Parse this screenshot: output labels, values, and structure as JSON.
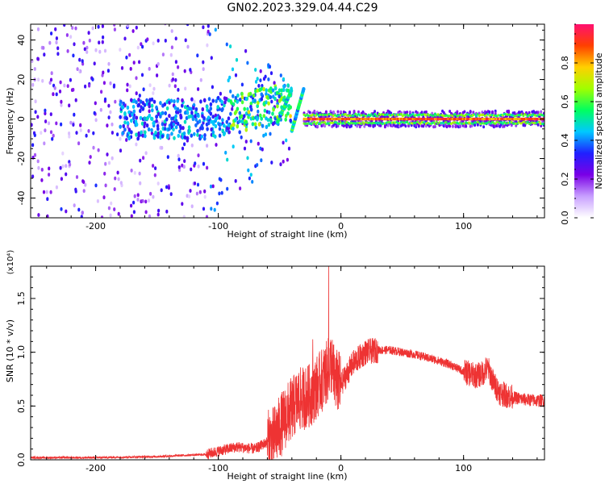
{
  "title": "GN02.2023.329.04.44.C29",
  "chart_data": [
    {
      "type": "heatmap",
      "xlabel": "Height of straight line (km)",
      "ylabel": "Frequency (Hz)",
      "xlim": [
        -253,
        166
      ],
      "ylim": [
        -50,
        48
      ],
      "x_ticks": [
        -200,
        -100,
        0,
        100
      ],
      "y_ticks": [
        -40,
        -20,
        0,
        20,
        40
      ],
      "colorbar": {
        "label": "Normalized spectral amplitude",
        "range": [
          0.0,
          1.0
        ],
        "ticks": [
          0.0,
          0.2,
          0.4,
          0.6,
          0.8
        ],
        "colors": [
          "#ffffff",
          "#c8a0ff",
          "#7a00e6",
          "#2020ff",
          "#00c8ff",
          "#00ff60",
          "#a0ff00",
          "#ffd000",
          "#ff4000",
          "#ff1070"
        ]
      },
      "features": {
        "noise_region_x": [
          -253,
          -110
        ],
        "ramp_x": [
          -110,
          -40
        ],
        "signal_line_freq": 0,
        "signal_line_x": [
          -30,
          166
        ]
      }
    },
    {
      "type": "line",
      "xlabel": "Height of straight line (km)",
      "ylabel": "SNR (10 * v/v)",
      "ylabel_multiplier": "(x10⁴)",
      "xlim": [
        -253,
        166
      ],
      "ylim": [
        0,
        1.8
      ],
      "x_ticks": [
        -200,
        -100,
        0,
        100
      ],
      "y_ticks": [
        0.0,
        0.5,
        1.0,
        1.5
      ],
      "series_color": "#ee3333",
      "envelope": {
        "x": [
          -253,
          -200,
          -150,
          -110,
          -100,
          -85,
          -70,
          -55,
          -45,
          -35,
          -25,
          -18,
          -12,
          -8,
          -5,
          0,
          10,
          20,
          30,
          40,
          50,
          60,
          70,
          80,
          90,
          100,
          110,
          115,
          120,
          125,
          130,
          140,
          150,
          160,
          166
        ],
        "y": [
          0.02,
          0.02,
          0.03,
          0.05,
          0.08,
          0.12,
          0.1,
          0.2,
          0.4,
          0.55,
          0.6,
          0.7,
          0.8,
          0.9,
          0.75,
          0.7,
          0.9,
          1.0,
          1.02,
          1.02,
          1.0,
          0.98,
          0.95,
          0.92,
          0.88,
          0.82,
          0.78,
          0.8,
          0.85,
          0.7,
          0.62,
          0.58,
          0.56,
          0.55,
          0.55
        ]
      },
      "peaks": [
        {
          "x": -10,
          "y": 1.8
        },
        {
          "x": -23,
          "y": 1.12
        },
        {
          "x": 118,
          "y": 0.95
        }
      ]
    }
  ]
}
